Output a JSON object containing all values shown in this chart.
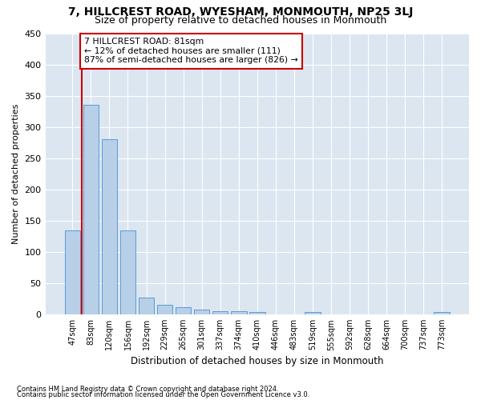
{
  "title": "7, HILLCREST ROAD, WYESHAM, MONMOUTH, NP25 3LJ",
  "subtitle": "Size of property relative to detached houses in Monmouth",
  "xlabel": "Distribution of detached houses by size in Monmouth",
  "ylabel": "Number of detached properties",
  "footer_line1": "Contains HM Land Registry data © Crown copyright and database right 2024.",
  "footer_line2": "Contains public sector information licensed under the Open Government Licence v3.0.",
  "categories": [
    "47sqm",
    "83sqm",
    "120sqm",
    "156sqm",
    "192sqm",
    "229sqm",
    "265sqm",
    "301sqm",
    "337sqm",
    "374sqm",
    "410sqm",
    "446sqm",
    "483sqm",
    "519sqm",
    "555sqm",
    "592sqm",
    "628sqm",
    "664sqm",
    "700sqm",
    "737sqm",
    "773sqm"
  ],
  "values": [
    135,
    336,
    281,
    135,
    27,
    16,
    12,
    8,
    6,
    5,
    4,
    0,
    0,
    4,
    0,
    0,
    0,
    0,
    0,
    0,
    4
  ],
  "bar_color": "#b8cfe8",
  "bar_edge_color": "#5b9bd5",
  "highlight_color": "#cc0000",
  "annotation_text": "7 HILLCREST ROAD: 81sqm\n← 12% of detached houses are smaller (111)\n87% of semi-detached houses are larger (826) →",
  "annotation_box_color": "#ffffff",
  "annotation_box_edge": "#cc0000",
  "ylim": [
    0,
    450
  ],
  "yticks": [
    0,
    50,
    100,
    150,
    200,
    250,
    300,
    350,
    400,
    450
  ],
  "plot_bg_color": "#dce6f1",
  "title_fontsize": 10,
  "subtitle_fontsize": 9,
  "xlabel_fontsize": 8.5,
  "ylabel_fontsize": 8,
  "grid_color": "#ffffff",
  "vline_x_index": 0
}
